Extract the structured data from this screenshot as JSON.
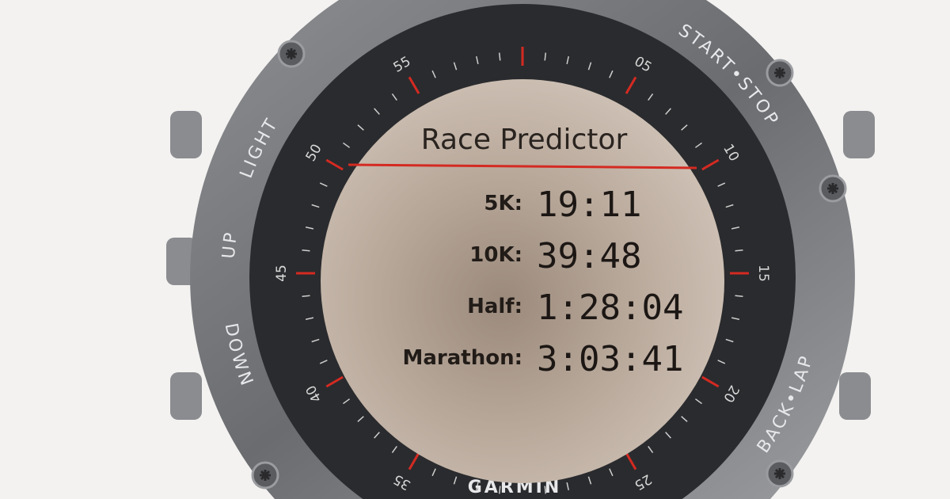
{
  "watch": {
    "brand": "GARMIN",
    "buttons": {
      "light": "LIGHT",
      "up": "UP",
      "down": "DOWN",
      "start_stop": "START•STOP",
      "back_lap": "BACK•LAP"
    },
    "minute_labels": [
      "05",
      "10",
      "15",
      "20",
      "25",
      "35",
      "40",
      "45",
      "50",
      "55"
    ],
    "accent_color": "#d42a22"
  },
  "screen": {
    "title": "Race Predictor",
    "predictions": [
      {
        "label": "5K:",
        "time": "19:11"
      },
      {
        "label": "10K:",
        "time": "39:48"
      },
      {
        "label": "Half:",
        "time": "1:28:04"
      },
      {
        "label": "Marathon:",
        "time": "3:03:41"
      }
    ]
  }
}
